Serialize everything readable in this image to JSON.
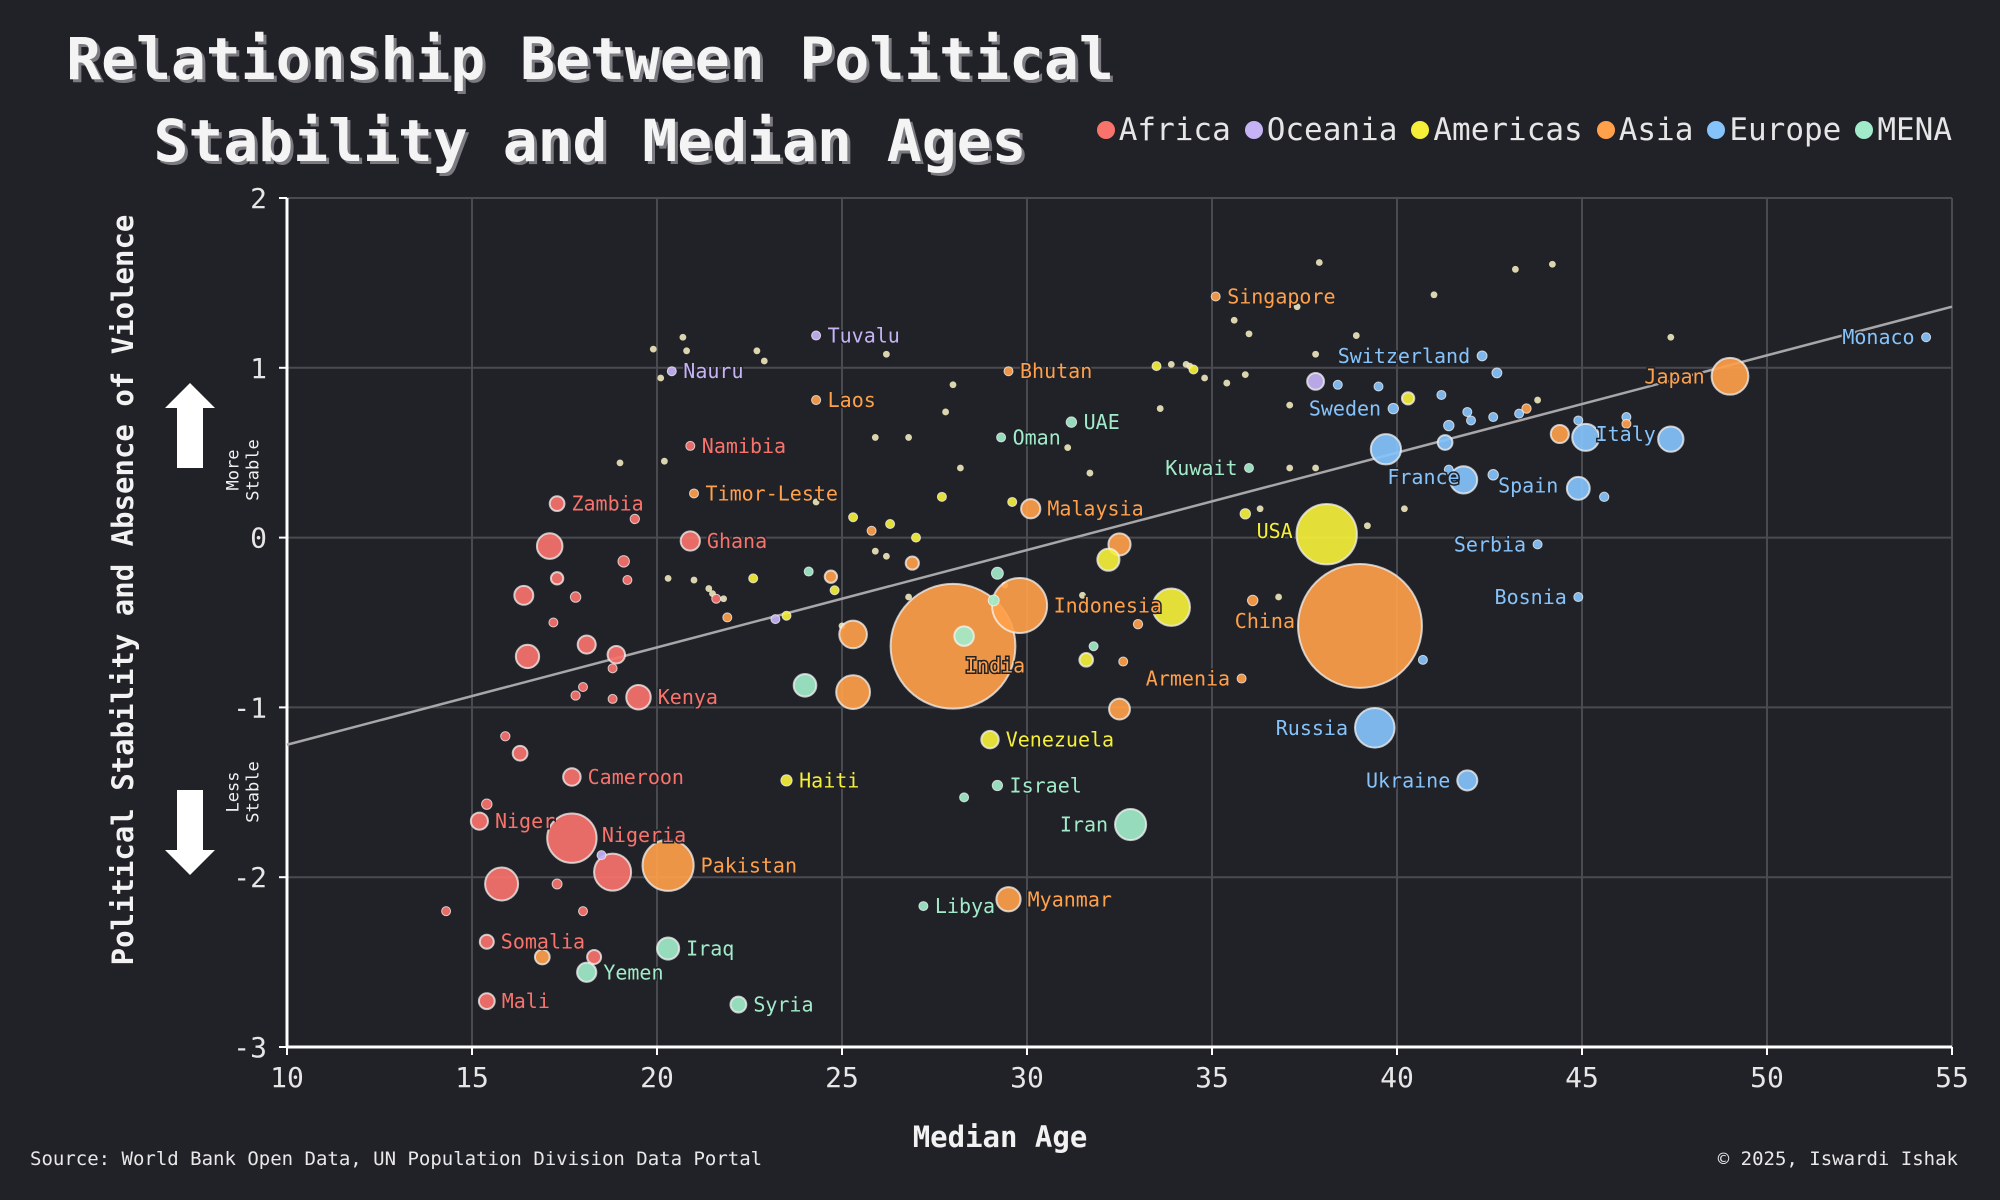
{
  "title": {
    "line1": "Relationship Between Political",
    "line2": "Stability and Median Ages"
  },
  "legend": [
    {
      "label": "Africa",
      "color": "#f8736c"
    },
    {
      "label": "Oceania",
      "color": "#c5b3f5"
    },
    {
      "label": "Americas",
      "color": "#f5ef3a"
    },
    {
      "label": "Asia",
      "color": "#ffa04a"
    },
    {
      "label": "Europe",
      "color": "#86c3fb"
    },
    {
      "label": "MENA",
      "color": "#a2ebca"
    }
  ],
  "annotations": {
    "more_stable": [
      "More",
      "Stable"
    ],
    "less_stable": [
      "Less",
      "Stable"
    ]
  },
  "source": "Source: World Bank Open Data, UN Population Division Data Portal",
  "copyright": "© 2025, Iswardi Ishak",
  "chart_data": {
    "type": "scatter",
    "xlabel": "Median Age",
    "ylabel": "Political Stability and Absence of Violence",
    "xlim": [
      10,
      55
    ],
    "ylim": [
      -3,
      2
    ],
    "xticks": [
      10,
      15,
      20,
      25,
      30,
      35,
      40,
      45,
      50,
      55
    ],
    "yticks": [
      2,
      1,
      0,
      -1,
      -2,
      -3
    ],
    "grid": true,
    "legend_position": "top-right",
    "trendline": {
      "x": [
        10,
        55
      ],
      "y": [
        -1.22,
        1.36
      ]
    },
    "points": [
      {
        "label": "Monaco",
        "region": "Europe",
        "x": 54.3,
        "y": 1.18,
        "pop": 0.04
      },
      {
        "label": "Japan",
        "region": "Asia",
        "x": 49.0,
        "y": 0.95,
        "pop": 124
      },
      {
        "label": "Italy",
        "region": "Europe",
        "x": 47.4,
        "y": 0.58,
        "pop": 59
      },
      {
        "label": "Spain",
        "region": "Europe",
        "x": 44.9,
        "y": 0.29,
        "pop": 48
      },
      {
        "label": "Switzerland",
        "region": "Europe",
        "x": 42.3,
        "y": 1.07,
        "pop": 9
      },
      {
        "label": "Sweden",
        "region": "Europe",
        "x": 39.9,
        "y": 0.76,
        "pop": 10
      },
      {
        "label": "France",
        "region": "Europe",
        "x": 41.8,
        "y": 0.34,
        "pop": 68
      },
      {
        "label": "Serbia",
        "region": "Europe",
        "x": 43.8,
        "y": -0.04,
        "pop": 6.7
      },
      {
        "label": "Bosnia",
        "region": "Europe",
        "x": 44.9,
        "y": -0.35,
        "pop": 3.2
      },
      {
        "label": "Russia",
        "region": "Europe",
        "x": 39.4,
        "y": -1.12,
        "pop": 144
      },
      {
        "label": "Ukraine",
        "region": "Europe",
        "x": 41.9,
        "y": -1.43,
        "pop": 37
      },
      {
        "label": "USA",
        "region": "Americas",
        "x": 38.1,
        "y": 0.02,
        "pop": 335
      },
      {
        "label": "China",
        "region": "Asia",
        "x": 39.0,
        "y": -0.52,
        "pop": 1410
      },
      {
        "label": "India",
        "region": "Asia",
        "x": 28.0,
        "y": -0.64,
        "pop": 1430
      },
      {
        "label": "Indonesia",
        "region": "Asia",
        "x": 29.8,
        "y": -0.4,
        "pop": 278
      },
      {
        "label": "Armenia",
        "region": "Asia",
        "x": 35.8,
        "y": -0.83,
        "pop": 2.8
      },
      {
        "label": "Malaysia",
        "region": "Asia",
        "x": 30.1,
        "y": 0.17,
        "pop": 34
      },
      {
        "label": "Singapore",
        "region": "Asia",
        "x": 35.1,
        "y": 1.42,
        "pop": 5.9
      },
      {
        "label": "Bhutan",
        "region": "Asia",
        "x": 29.5,
        "y": 0.98,
        "pop": 0.78
      },
      {
        "label": "Laos",
        "region": "Asia",
        "x": 24.3,
        "y": 0.81,
        "pop": 7.6
      },
      {
        "label": "Timor-Leste",
        "region": "Asia",
        "x": 21.0,
        "y": 0.26,
        "pop": 1.4
      },
      {
        "label": "Pakistan",
        "region": "Asia",
        "x": 20.3,
        "y": -1.93,
        "pop": 240
      },
      {
        "label": "Myanmar",
        "region": "Asia",
        "x": 29.5,
        "y": -2.13,
        "pop": 54
      },
      {
        "label": "Tuvalu",
        "region": "Oceania",
        "x": 24.3,
        "y": 1.19,
        "pop": 0.011
      },
      {
        "label": "Nauru",
        "region": "Oceania",
        "x": 20.4,
        "y": 0.98,
        "pop": 0.013
      },
      {
        "label": "UAE",
        "region": "MENA",
        "x": 31.2,
        "y": 0.68,
        "pop": 10
      },
      {
        "label": "Oman",
        "region": "MENA",
        "x": 29.3,
        "y": 0.59,
        "pop": 4.6
      },
      {
        "label": "Kuwait",
        "region": "MENA",
        "x": 36.0,
        "y": 0.41,
        "pop": 4.3
      },
      {
        "label": "Israel",
        "region": "MENA",
        "x": 29.2,
        "y": -1.46,
        "pop": 9.7
      },
      {
        "label": "Iran",
        "region": "MENA",
        "x": 32.8,
        "y": -1.69,
        "pop": 89
      },
      {
        "label": "Iraq",
        "region": "MENA",
        "x": 20.3,
        "y": -2.42,
        "pop": 45
      },
      {
        "label": "Yemen",
        "region": "MENA",
        "x": 18.1,
        "y": -2.56,
        "pop": 34
      },
      {
        "label": "Libya",
        "region": "MENA",
        "x": 27.2,
        "y": -2.17,
        "pop": 6.9
      },
      {
        "label": "Syria",
        "region": "MENA",
        "x": 22.2,
        "y": -2.75,
        "pop": 23
      },
      {
        "label": "Venezuela",
        "region": "Americas",
        "x": 29.0,
        "y": -1.19,
        "pop": 28
      },
      {
        "label": "Haiti",
        "region": "Americas",
        "x": 23.5,
        "y": -1.43,
        "pop": 11.7
      },
      {
        "label": "Namibia",
        "region": "Africa",
        "x": 20.9,
        "y": 0.54,
        "pop": 2.6
      },
      {
        "label": "Zambia",
        "region": "Africa",
        "x": 17.3,
        "y": 0.2,
        "pop": 20
      },
      {
        "label": "Ghana",
        "region": "Africa",
        "x": 20.9,
        "y": -0.02,
        "pop": 34
      },
      {
        "label": "Kenya",
        "region": "Africa",
        "x": 19.5,
        "y": -0.94,
        "pop": 55
      },
      {
        "label": "Cameroon",
        "region": "Africa",
        "x": 17.7,
        "y": -1.41,
        "pop": 28
      },
      {
        "label": "Niger",
        "region": "Africa",
        "x": 15.2,
        "y": -1.67,
        "pop": 27
      },
      {
        "label": "Nigeria",
        "region": "Africa",
        "x": 17.7,
        "y": -1.77,
        "pop": 224
      },
      {
        "label": "Somalia",
        "region": "Africa",
        "x": 15.4,
        "y": -2.38,
        "pop": 18
      },
      {
        "label": "Mali",
        "region": "Africa",
        "x": 15.4,
        "y": -2.73,
        "pop": 23
      },
      {
        "label": "",
        "region": "Africa",
        "x": 18.8,
        "y": -1.97,
        "pop": 126
      },
      {
        "label": "",
        "region": "Africa",
        "x": 15.8,
        "y": -2.04,
        "pop": 100
      },
      {
        "label": "",
        "region": "Africa",
        "x": 17.1,
        "y": -0.05,
        "pop": 60
      },
      {
        "label": "",
        "region": "Africa",
        "x": 16.5,
        "y": -0.7,
        "pop": 50
      },
      {
        "label": "",
        "region": "Africa",
        "x": 16.4,
        "y": -0.34,
        "pop": 33
      },
      {
        "label": "",
        "region": "Africa",
        "x": 18.1,
        "y": -0.63,
        "pop": 30
      },
      {
        "label": "",
        "region": "Africa",
        "x": 18.9,
        "y": -0.69,
        "pop": 28
      },
      {
        "label": "",
        "region": "Africa",
        "x": 16.3,
        "y": -1.27,
        "pop": 20
      },
      {
        "label": "",
        "region": "Africa",
        "x": 19.1,
        "y": -0.14,
        "pop": 12
      },
      {
        "label": "",
        "region": "Africa",
        "x": 17.3,
        "y": -0.24,
        "pop": 14
      },
      {
        "label": "",
        "region": "Africa",
        "x": 17.8,
        "y": -0.35,
        "pop": 10
      },
      {
        "label": "",
        "region": "Africa",
        "x": 19.4,
        "y": 0.11,
        "pop": 8
      },
      {
        "label": "",
        "region": "Africa",
        "x": 15.4,
        "y": -1.57,
        "pop": 10
      },
      {
        "label": "",
        "region": "Africa",
        "x": 15.9,
        "y": -1.17,
        "pop": 8
      },
      {
        "label": "",
        "region": "Africa",
        "x": 17.3,
        "y": -2.04,
        "pop": 9
      },
      {
        "label": "",
        "region": "Africa",
        "x": 17.8,
        "y": -0.93,
        "pop": 8
      },
      {
        "label": "",
        "region": "Africa",
        "x": 18.8,
        "y": -0.95,
        "pop": 6
      },
      {
        "label": "",
        "region": "Africa",
        "x": 18.0,
        "y": -0.88,
        "pop": 5
      },
      {
        "label": "",
        "region": "Africa",
        "x": 18.0,
        "y": -2.2,
        "pop": 5
      },
      {
        "label": "",
        "region": "Africa",
        "x": 18.3,
        "y": -2.47,
        "pop": 18
      },
      {
        "label": "",
        "region": "Africa",
        "x": 14.3,
        "y": -2.2,
        "pop": 2
      },
      {
        "label": "",
        "region": "Africa",
        "x": 17.2,
        "y": -0.5,
        "pop": 2
      },
      {
        "label": "",
        "region": "Africa",
        "x": 18.8,
        "y": -0.77,
        "pop": 2
      },
      {
        "label": "",
        "region": "Africa",
        "x": 19.2,
        "y": -0.25,
        "pop": 2
      },
      {
        "label": "",
        "region": "Africa",
        "x": 21.6,
        "y": -0.36,
        "pop": 1.5
      },
      {
        "label": "",
        "region": "Asia",
        "x": 25.3,
        "y": -0.57,
        "pop": 70
      },
      {
        "label": "",
        "region": "Asia",
        "x": 25.3,
        "y": -0.91,
        "pop": 105
      },
      {
        "label": "",
        "region": "Asia",
        "x": 32.5,
        "y": -0.04,
        "pop": 45
      },
      {
        "label": "",
        "region": "Asia",
        "x": 32.5,
        "y": -1.01,
        "pop": 40
      },
      {
        "label": "",
        "region": "Asia",
        "x": 26.9,
        "y": -0.15,
        "pop": 16
      },
      {
        "label": "",
        "region": "Asia",
        "x": 24.7,
        "y": -0.23,
        "pop": 14
      },
      {
        "label": "",
        "region": "Asia",
        "x": 44.4,
        "y": 0.61,
        "pop": 30
      },
      {
        "label": "",
        "region": "Asia",
        "x": 16.9,
        "y": -2.47,
        "pop": 20
      },
      {
        "label": "",
        "region": "Asia",
        "x": 36.1,
        "y": -0.37,
        "pop": 10
      },
      {
        "label": "",
        "region": "Asia",
        "x": 43.5,
        "y": 0.76,
        "pop": 8
      },
      {
        "label": "",
        "region": "Asia",
        "x": 33.0,
        "y": -0.51,
        "pop": 8
      },
      {
        "label": "",
        "region": "Asia",
        "x": 25.8,
        "y": 0.04,
        "pop": 7
      },
      {
        "label": "",
        "region": "Asia",
        "x": 32.6,
        "y": -0.73,
        "pop": 5
      },
      {
        "label": "",
        "region": "Asia",
        "x": 21.9,
        "y": -0.47,
        "pop": 4
      },
      {
        "label": "",
        "region": "Asia",
        "x": 46.2,
        "y": 0.67,
        "pop": 2
      },
      {
        "label": "",
        "region": "Europe",
        "x": 39.7,
        "y": 0.52,
        "pop": 84
      },
      {
        "label": "",
        "region": "Europe",
        "x": 45.1,
        "y": 0.59,
        "pop": 67
      },
      {
        "label": "",
        "region": "Europe",
        "x": 41.3,
        "y": 0.56,
        "pop": 20
      },
      {
        "label": "",
        "region": "Europe",
        "x": 42.6,
        "y": 0.37,
        "pop": 10
      },
      {
        "label": "",
        "region": "Europe",
        "x": 45.6,
        "y": 0.24,
        "pop": 8
      },
      {
        "label": "",
        "region": "Europe",
        "x": 41.4,
        "y": 0.66,
        "pop": 10
      },
      {
        "label": "",
        "region": "Europe",
        "x": 42.7,
        "y": 0.97,
        "pop": 9
      },
      {
        "label": "",
        "region": "Europe",
        "x": 46.2,
        "y": 0.71,
        "pop": 5
      },
      {
        "label": "",
        "region": "Europe",
        "x": 43.3,
        "y": 0.73,
        "pop": 6
      },
      {
        "label": "",
        "region": "Europe",
        "x": 44.9,
        "y": 0.69,
        "pop": 4
      },
      {
        "label": "",
        "region": "Europe",
        "x": 41.4,
        "y": 0.4,
        "pop": 5
      },
      {
        "label": "",
        "region": "Europe",
        "x": 41.2,
        "y": 0.84,
        "pop": 3
      },
      {
        "label": "",
        "region": "Europe",
        "x": 39.5,
        "y": 0.89,
        "pop": 3
      },
      {
        "label": "",
        "region": "Europe",
        "x": 38.4,
        "y": 0.9,
        "pop": 2
      },
      {
        "label": "",
        "region": "Europe",
        "x": 42.0,
        "y": 0.69,
        "pop": 2
      },
      {
        "label": "",
        "region": "Europe",
        "x": 41.9,
        "y": 0.74,
        "pop": 2
      },
      {
        "label": "",
        "region": "Europe",
        "x": 42.6,
        "y": 0.71,
        "pop": 2
      },
      {
        "label": "",
        "region": "Europe",
        "x": 40.7,
        "y": -0.72,
        "pop": 2
      },
      {
        "label": "",
        "region": "Americas",
        "x": 32.2,
        "y": -0.13,
        "pop": 45
      },
      {
        "label": "",
        "region": "Americas",
        "x": 33.9,
        "y": -0.41,
        "pop": 128
      },
      {
        "label": "",
        "region": "Americas",
        "x": 31.6,
        "y": -0.72,
        "pop": 17
      },
      {
        "label": "",
        "region": "Americas",
        "x": 40.3,
        "y": 0.82,
        "pop": 14
      },
      {
        "label": "",
        "region": "Americas",
        "x": 35.9,
        "y": 0.14,
        "pop": 10
      },
      {
        "label": "",
        "region": "Americas",
        "x": 27.7,
        "y": 0.24,
        "pop": 7
      },
      {
        "label": "",
        "region": "Americas",
        "x": 22.6,
        "y": -0.24,
        "pop": 6
      },
      {
        "label": "",
        "region": "Americas",
        "x": 24.8,
        "y": -0.31,
        "pop": 3
      },
      {
        "label": "",
        "region": "Americas",
        "x": 23.5,
        "y": -0.46,
        "pop": 1.5
      },
      {
        "label": "",
        "region": "Americas",
        "x": 27.0,
        "y": 0.0,
        "pop": 1
      },
      {
        "label": "",
        "region": "Americas",
        "x": 26.3,
        "y": 0.08,
        "pop": 1
      },
      {
        "label": "",
        "region": "Americas",
        "x": 25.3,
        "y": 0.12,
        "pop": 0.4
      },
      {
        "label": "",
        "region": "Americas",
        "x": 34.5,
        "y": 0.99,
        "pop": 0.3
      },
      {
        "label": "",
        "region": "Americas",
        "x": 33.5,
        "y": 1.01,
        "pop": 0.3
      },
      {
        "label": "",
        "region": "Americas",
        "x": 29.6,
        "y": 0.21,
        "pop": 0.5
      },
      {
        "label": "",
        "region": "MENA",
        "x": 24.0,
        "y": -0.87,
        "pop": 47
      },
      {
        "label": "",
        "region": "MENA",
        "x": 28.3,
        "y": -0.58,
        "pop": 35
      },
      {
        "label": "",
        "region": "MENA",
        "x": 29.2,
        "y": -0.21,
        "pop": 13
      },
      {
        "label": "",
        "region": "MENA",
        "x": 29.1,
        "y": -0.37,
        "pop": 11
      },
      {
        "label": "",
        "region": "MENA",
        "x": 24.1,
        "y": -0.2,
        "pop": 5
      },
      {
        "label": "",
        "region": "MENA",
        "x": 31.8,
        "y": -0.64,
        "pop": 4
      },
      {
        "label": "",
        "region": "MENA",
        "x": 28.3,
        "y": -1.53,
        "pop": 2
      },
      {
        "label": "",
        "region": "Oceania",
        "x": 37.8,
        "y": 0.92,
        "pop": 26
      },
      {
        "label": "",
        "region": "Oceania",
        "x": 23.2,
        "y": -0.48,
        "pop": 1
      },
      {
        "label": "",
        "region": "Oceania",
        "x": 18.5,
        "y": -1.87,
        "pop": 0.5
      }
    ],
    "small_dots": [
      [
        20.7,
        1.18
      ],
      [
        20.8,
        1.1
      ],
      [
        19.9,
        1.11
      ],
      [
        20.1,
        0.94
      ],
      [
        22.7,
        1.1
      ],
      [
        22.9,
        1.04
      ],
      [
        26.2,
        1.08
      ],
      [
        28.0,
        0.9
      ],
      [
        27.8,
        0.74
      ],
      [
        26.8,
        0.59
      ],
      [
        25.9,
        0.59
      ],
      [
        28.2,
        0.41
      ],
      [
        24.3,
        0.21
      ],
      [
        31.7,
        0.38
      ],
      [
        31.1,
        0.53
      ],
      [
        33.6,
        0.76
      ],
      [
        34.8,
        0.94
      ],
      [
        35.4,
        0.91
      ],
      [
        35.9,
        0.96
      ],
      [
        36.0,
        1.2
      ],
      [
        35.6,
        1.28
      ],
      [
        37.1,
        0.78
      ],
      [
        37.9,
        1.62
      ],
      [
        37.3,
        1.36
      ],
      [
        37.8,
        1.08
      ],
      [
        38.9,
        1.19
      ],
      [
        41.0,
        1.43
      ],
      [
        43.2,
        1.58
      ],
      [
        44.2,
        1.61
      ],
      [
        47.4,
        1.18
      ],
      [
        43.8,
        0.81
      ],
      [
        39.2,
        0.07
      ],
      [
        40.2,
        0.17
      ],
      [
        36.8,
        -0.35
      ],
      [
        36.3,
        0.17
      ],
      [
        37.1,
        0.41
      ],
      [
        37.8,
        0.41
      ],
      [
        20.2,
        0.45
      ],
      [
        19.0,
        0.44
      ],
      [
        20.3,
        -0.24
      ],
      [
        21.0,
        -0.25
      ],
      [
        21.5,
        -0.33
      ],
      [
        21.4,
        -0.3
      ],
      [
        21.8,
        -0.36
      ],
      [
        25.0,
        -0.52
      ],
      [
        25.9,
        -0.08
      ],
      [
        26.2,
        -0.11
      ],
      [
        29.4,
        -0.28
      ],
      [
        31.5,
        -0.34
      ],
      [
        26.8,
        -0.35
      ],
      [
        34.4,
        1.01
      ],
      [
        33.9,
        1.02
      ],
      [
        34.3,
        1.02
      ]
    ]
  }
}
